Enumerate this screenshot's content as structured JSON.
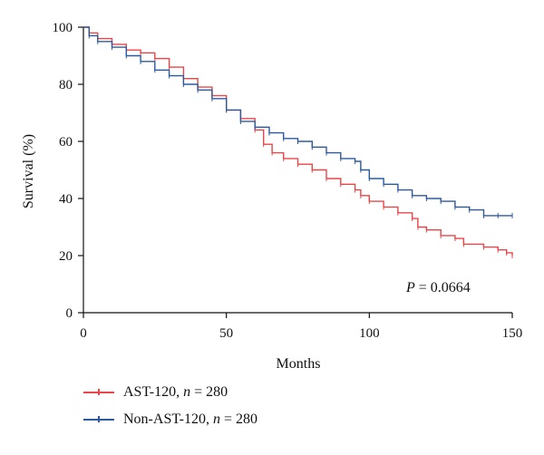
{
  "chart_data": {
    "type": "line",
    "title": "",
    "xlabel": "Months",
    "ylabel": "Survival (%)",
    "xlim": [
      0,
      150
    ],
    "ylim": [
      0,
      100
    ],
    "x_ticks": [
      0,
      50,
      100,
      150
    ],
    "y_ticks": [
      0,
      20,
      40,
      60,
      80,
      100
    ],
    "annotation": {
      "label": "P",
      "text": " = 0.0664"
    },
    "legend_position": "bottom-left",
    "series": [
      {
        "name": "AST-120",
        "legend_label": "AST-120, ",
        "legend_n": "n",
        "legend_count": " = 280",
        "color": "#e8464a",
        "points": [
          [
            0,
            100
          ],
          [
            2,
            98
          ],
          [
            5,
            96
          ],
          [
            10,
            94
          ],
          [
            15,
            92
          ],
          [
            20,
            91
          ],
          [
            25,
            89
          ],
          [
            30,
            86
          ],
          [
            35,
            82
          ],
          [
            40,
            79
          ],
          [
            45,
            76
          ],
          [
            50,
            71
          ],
          [
            55,
            68
          ],
          [
            60,
            64
          ],
          [
            63,
            59
          ],
          [
            66,
            56
          ],
          [
            70,
            54
          ],
          [
            75,
            52
          ],
          [
            80,
            50
          ],
          [
            85,
            47
          ],
          [
            90,
            45
          ],
          [
            95,
            43
          ],
          [
            97,
            41
          ],
          [
            100,
            39
          ],
          [
            105,
            37
          ],
          [
            110,
            35
          ],
          [
            115,
            33
          ],
          [
            117,
            30
          ],
          [
            120,
            29
          ],
          [
            125,
            27
          ],
          [
            130,
            26
          ],
          [
            133,
            24
          ],
          [
            140,
            23
          ],
          [
            145,
            22
          ],
          [
            148,
            21
          ],
          [
            150,
            20
          ]
        ]
      },
      {
        "name": "Non-AST-120",
        "legend_label": "Non-AST-120, ",
        "legend_n": "n",
        "legend_count": " = 280",
        "color": "#2c5aa0",
        "points": [
          [
            0,
            100
          ],
          [
            2,
            97
          ],
          [
            5,
            95
          ],
          [
            10,
            93
          ],
          [
            15,
            90
          ],
          [
            20,
            88
          ],
          [
            25,
            85
          ],
          [
            30,
            83
          ],
          [
            35,
            80
          ],
          [
            40,
            78
          ],
          [
            45,
            75
          ],
          [
            50,
            71
          ],
          [
            55,
            67
          ],
          [
            60,
            65
          ],
          [
            65,
            63
          ],
          [
            70,
            61
          ],
          [
            75,
            60
          ],
          [
            80,
            58
          ],
          [
            85,
            56
          ],
          [
            90,
            54
          ],
          [
            95,
            53
          ],
          [
            97,
            50
          ],
          [
            100,
            47
          ],
          [
            105,
            45
          ],
          [
            110,
            43
          ],
          [
            115,
            41
          ],
          [
            120,
            40
          ],
          [
            125,
            39
          ],
          [
            130,
            37
          ],
          [
            135,
            36
          ],
          [
            140,
            34
          ],
          [
            145,
            34
          ],
          [
            150,
            34
          ]
        ]
      }
    ]
  }
}
